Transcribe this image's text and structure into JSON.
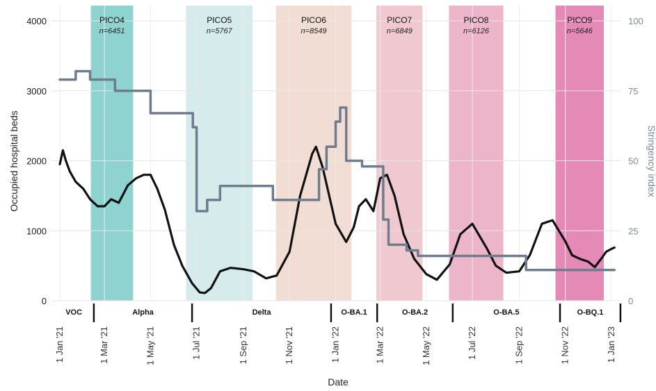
{
  "chart_data": {
    "type": "line",
    "xlabel": "Date",
    "ylabel": "Occupied hospital beds",
    "y2label": "Stringency index",
    "x_range": [
      "2020-12-20",
      "2023-01-14"
    ],
    "ylim": [
      0,
      4000
    ],
    "y2lim": [
      0,
      100
    ],
    "grid": true,
    "x_ticks": [
      {
        "date": "2021-01-01",
        "label": "1 Jan '21"
      },
      {
        "date": "2021-03-01",
        "label": "1 Mar '21"
      },
      {
        "date": "2021-05-01",
        "label": "1 May '21"
      },
      {
        "date": "2021-07-01",
        "label": "1 Jul '21"
      },
      {
        "date": "2021-09-01",
        "label": "1 Sep '21"
      },
      {
        "date": "2021-11-01",
        "label": "1 Nov '21"
      },
      {
        "date": "2022-01-01",
        "label": "1 Jan '22"
      },
      {
        "date": "2022-03-01",
        "label": "1 Mar '22"
      },
      {
        "date": "2022-05-01",
        "label": "1 May '22"
      },
      {
        "date": "2022-07-01",
        "label": "1 Jul '22"
      },
      {
        "date": "2022-09-01",
        "label": "1 Sep '22"
      },
      {
        "date": "2022-11-01",
        "label": "1 Nov '22"
      },
      {
        "date": "2023-01-01",
        "label": "1 Jan '23"
      }
    ],
    "y_ticks": [
      0,
      1000,
      2000,
      3000,
      4000
    ],
    "y2_ticks": [
      0,
      25,
      50,
      75,
      100
    ],
    "bands": [
      {
        "label": "PICO4",
        "n": "n=6451",
        "start": "2021-02-11",
        "end": "2021-04-08",
        "color": "#8fd3d0"
      },
      {
        "label": "PICO5",
        "n": "n=5767",
        "start": "2021-06-17",
        "end": "2021-09-13",
        "color": "#d6ecec"
      },
      {
        "label": "PICO6",
        "n": "n=8549",
        "start": "2021-10-14",
        "end": "2022-01-22",
        "color": "#f2ddd4"
      },
      {
        "label": "PICO7",
        "n": "n=6849",
        "start": "2022-02-24",
        "end": "2022-04-26",
        "color": "#f0c9d0"
      },
      {
        "label": "PICO8",
        "n": "n=6126",
        "start": "2022-05-31",
        "end": "2022-08-11",
        "color": "#edb5c9"
      },
      {
        "label": "PICO9",
        "n": "n=5646",
        "start": "2022-10-19",
        "end": "2022-12-22",
        "color": "#e589b6"
      }
    ],
    "variants": [
      {
        "label": "VOC",
        "start": "2020-12-24",
        "end": "2021-02-15"
      },
      {
        "label": "Alpha",
        "start": "2021-02-15",
        "end": "2021-06-25"
      },
      {
        "label": "Delta",
        "start": "2021-06-25",
        "end": "2021-12-26"
      },
      {
        "label": "O-BA.1",
        "start": "2021-12-26",
        "end": "2022-02-25"
      },
      {
        "label": "O-BA.2",
        "start": "2022-02-25",
        "end": "2022-06-05"
      },
      {
        "label": "O-BA.5",
        "start": "2022-06-05",
        "end": "2022-10-25"
      },
      {
        "label": "O-BQ.1",
        "start": "2022-10-25",
        "end": "2023-01-13"
      }
    ],
    "series": [
      {
        "name": "Occupied hospital beds",
        "axis": "left",
        "color": "#111111",
        "x": [
          "2021-01-01",
          "2021-01-05",
          "2021-01-09",
          "2021-01-14",
          "2021-01-22",
          "2021-02-01",
          "2021-02-10",
          "2021-02-20",
          "2021-03-01",
          "2021-03-10",
          "2021-03-20",
          "2021-04-01",
          "2021-04-12",
          "2021-04-22",
          "2021-05-01",
          "2021-05-10",
          "2021-05-20",
          "2021-06-01",
          "2021-06-12",
          "2021-06-25",
          "2021-07-05",
          "2021-07-12",
          "2021-07-20",
          "2021-08-01",
          "2021-08-15",
          "2021-09-01",
          "2021-09-15",
          "2021-10-01",
          "2021-10-15",
          "2021-11-01",
          "2021-11-15",
          "2021-12-01",
          "2021-12-06",
          "2021-12-15",
          "2022-01-01",
          "2022-01-15",
          "2022-01-25",
          "2022-02-01",
          "2022-02-10",
          "2022-02-20",
          "2022-03-01",
          "2022-03-10",
          "2022-03-20",
          "2022-04-01",
          "2022-04-15",
          "2022-05-01",
          "2022-05-15",
          "2022-06-01",
          "2022-06-15",
          "2022-07-01",
          "2022-07-20",
          "2022-08-01",
          "2022-08-15",
          "2022-09-01",
          "2022-09-15",
          "2022-10-01",
          "2022-10-15",
          "2022-11-01",
          "2022-11-10",
          "2022-11-20",
          "2022-12-01",
          "2022-12-10",
          "2022-12-20",
          "2022-12-25",
          "2023-01-01",
          "2023-01-05"
        ],
        "values": [
          1950,
          2150,
          2000,
          1850,
          1700,
          1600,
          1450,
          1350,
          1350,
          1450,
          1400,
          1650,
          1750,
          1800,
          1800,
          1600,
          1300,
          800,
          500,
          250,
          120,
          110,
          180,
          420,
          470,
          450,
          420,
          320,
          360,
          700,
          1500,
          2100,
          2200,
          1900,
          1100,
          840,
          1050,
          1350,
          1450,
          1280,
          1750,
          1800,
          1500,
          950,
          600,
          380,
          300,
          520,
          950,
          1100,
          750,
          500,
          400,
          420,
          650,
          1100,
          1150,
          850,
          650,
          600,
          560,
          480,
          620,
          700,
          740,
          760
        ]
      },
      {
        "name": "Stringency index",
        "axis": "right",
        "color": "#6e7d8d",
        "step": true,
        "x": [
          "2021-01-01",
          "2021-01-22",
          "2021-02-10",
          "2021-03-15",
          "2021-05-01",
          "2021-06-26",
          "2021-07-01",
          "2021-07-15",
          "2021-08-01",
          "2021-10-01",
          "2021-10-10",
          "2021-11-20",
          "2021-12-10",
          "2021-12-20",
          "2022-01-01",
          "2022-01-07",
          "2022-01-15",
          "2022-02-05",
          "2022-03-05",
          "2022-03-12",
          "2022-04-05",
          "2022-04-20",
          "2022-08-25",
          "2022-09-10",
          "2023-01-05"
        ],
        "values": [
          79,
          82,
          79,
          75,
          67,
          62,
          32,
          36,
          41,
          41,
          36,
          36,
          47,
          55,
          64,
          69,
          50,
          48,
          29,
          20,
          18,
          16,
          16,
          11,
          11
        ]
      }
    ]
  }
}
